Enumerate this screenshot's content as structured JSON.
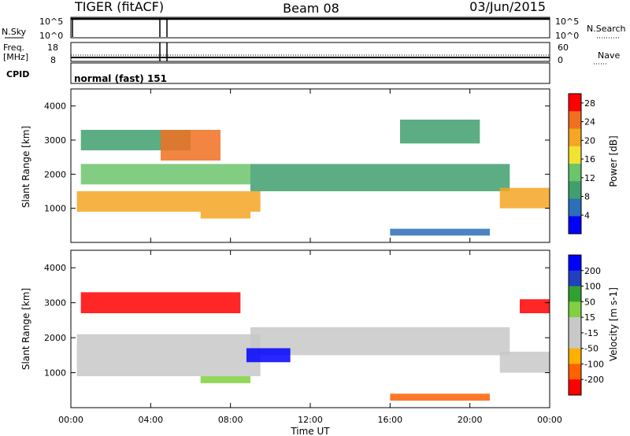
{
  "header": {
    "station": "TIGER (fitACF)",
    "beam": "Beam 08",
    "date": "03/Jun/2015"
  },
  "strip_panels": {
    "nsky": {
      "label": "N.Sky",
      "ticks": [
        "10^5",
        "10^0"
      ]
    },
    "nsearch": {
      "label": "N.Search",
      "ticks": [
        "10^5",
        "10^0"
      ]
    },
    "freq": {
      "label_line1": "Freq.",
      "label_line2": "[MHz]",
      "ticks": [
        "18",
        "8"
      ]
    },
    "nave": {
      "label": "Nave",
      "ticks": [
        "60",
        "0"
      ]
    },
    "cpid": {
      "label": "CPID",
      "value": "normal (fast) 151"
    }
  },
  "colors": {
    "power_scale": [
      "#0000ff",
      "#2b6fb8",
      "#3f9f6f",
      "#6cc46c",
      "#f2e233",
      "#f5a623",
      "#f07020",
      "#ff0000"
    ],
    "velocity_scale": [
      "#ff0000",
      "#ff6000",
      "#ffb000",
      "#c8c8c8",
      "#c8c8c8",
      "#80d040",
      "#30a030",
      "#2040c0",
      "#0000ff"
    ],
    "ground_scatter": "#bdbdbd"
  },
  "chart_data": [
    {
      "type": "heatmap",
      "title": "",
      "xlabel": "Time UT",
      "ylabel": "Slant Range [km]",
      "xlim": [
        "00:00",
        "24:00"
      ],
      "x_ticks": [
        "00:00",
        "04:00",
        "08:00",
        "12:00",
        "16:00",
        "20:00",
        "00:00"
      ],
      "ylim": [
        0,
        4500
      ],
      "y_ticks": [
        1000,
        2000,
        3000,
        4000
      ],
      "colorbar": {
        "label": "Power [dB]",
        "ticks": [
          4,
          8,
          12,
          16,
          20,
          24,
          28
        ],
        "range": [
          0,
          30
        ]
      },
      "bands": [
        {
          "t_start_h": 0.3,
          "t_end_h": 9.5,
          "range_km": [
            900,
            1500
          ],
          "value": 22
        },
        {
          "t_start_h": 0.5,
          "t_end_h": 9.0,
          "range_km": [
            1700,
            2300
          ],
          "value": 14
        },
        {
          "t_start_h": 0.5,
          "t_end_h": 6.0,
          "range_km": [
            2700,
            3300
          ],
          "value": 10
        },
        {
          "t_start_h": 4.5,
          "t_end_h": 7.5,
          "range_km": [
            2400,
            3300
          ],
          "value": 24
        },
        {
          "t_start_h": 6.5,
          "t_end_h": 9.0,
          "range_km": [
            700,
            900
          ],
          "value": 22
        },
        {
          "t_start_h": 9.0,
          "t_end_h": 22.0,
          "range_km": [
            1500,
            2300
          ],
          "value": 9
        },
        {
          "t_start_h": 16.0,
          "t_end_h": 21.0,
          "range_km": [
            200,
            400
          ],
          "value": 7
        },
        {
          "t_start_h": 21.5,
          "t_end_h": 24.0,
          "range_km": [
            1000,
            1600
          ],
          "value": 22
        },
        {
          "t_start_h": 16.5,
          "t_end_h": 20.5,
          "range_km": [
            2900,
            3600
          ],
          "value": 8
        }
      ]
    },
    {
      "type": "heatmap",
      "title": "",
      "xlabel": "Time UT",
      "ylabel": "Slant Range [km]",
      "xlim": [
        "00:00",
        "24:00"
      ],
      "x_ticks": [
        "00:00",
        "04:00",
        "08:00",
        "12:00",
        "16:00",
        "20:00",
        "00:00"
      ],
      "ylim": [
        0,
        4500
      ],
      "y_ticks": [
        1000,
        2000,
        3000,
        4000
      ],
      "colorbar": {
        "label": "Velocity [m s-1]",
        "ticks": [
          200,
          100,
          50,
          15,
          -15,
          -50,
          -100,
          -200
        ]
      },
      "bands": [
        {
          "t_start_h": 0.3,
          "t_end_h": 9.5,
          "range_km": [
            900,
            2100
          ],
          "value": 0
        },
        {
          "t_start_h": 9.0,
          "t_end_h": 22.0,
          "range_km": [
            1500,
            2300
          ],
          "value": 0
        },
        {
          "t_start_h": 0.5,
          "t_end_h": 8.5,
          "range_km": [
            2700,
            3300
          ],
          "value": -120
        },
        {
          "t_start_h": 8.8,
          "t_end_h": 11.0,
          "range_km": [
            1300,
            1700
          ],
          "value": 220
        },
        {
          "t_start_h": 6.5,
          "t_end_h": 9.0,
          "range_km": [
            700,
            900
          ],
          "value": 60
        },
        {
          "t_start_h": 16.0,
          "t_end_h": 21.0,
          "range_km": [
            200,
            400
          ],
          "value": -60
        },
        {
          "t_start_h": 21.5,
          "t_end_h": 24.0,
          "range_km": [
            1000,
            1600
          ],
          "value": 0
        },
        {
          "t_start_h": 22.5,
          "t_end_h": 24.0,
          "range_km": [
            2700,
            3100
          ],
          "value": -150
        }
      ]
    }
  ]
}
